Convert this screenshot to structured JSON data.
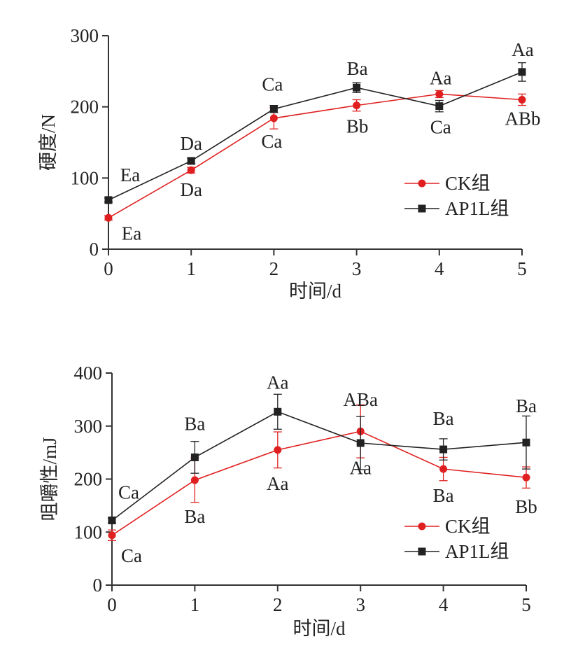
{
  "chart_data": [
    {
      "type": "line",
      "xlabel": "时间/d",
      "ylabel": "硬度/N",
      "x": [
        0,
        1,
        2,
        3,
        4,
        5
      ],
      "xlim": [
        0,
        5
      ],
      "ylim": [
        0,
        300
      ],
      "yticks": [
        0,
        100,
        200,
        300
      ],
      "grid": false,
      "legend_position": "lower-right",
      "series": [
        {
          "name": "CK组",
          "color": "#e02020",
          "marker": "circle",
          "values": [
            44,
            111,
            184,
            202,
            218,
            210
          ],
          "errors": [
            3,
            4,
            15,
            8,
            5,
            8
          ],
          "labels": [
            "Ea",
            "Da",
            "Ca",
            "Bb",
            "Aa",
            "ABb"
          ]
        },
        {
          "name": "AP1L组",
          "color": "#222222",
          "marker": "square",
          "values": [
            69,
            124,
            197,
            227,
            201,
            249
          ],
          "errors": [
            3,
            4,
            5,
            7,
            8,
            13
          ],
          "labels": [
            "Ea",
            "Da",
            "Ca",
            "Ba",
            "Ca",
            "Aa"
          ]
        }
      ]
    },
    {
      "type": "line",
      "xlabel": "时间/d",
      "ylabel": "咀嚼性/mJ",
      "x": [
        0,
        1,
        2,
        3,
        4,
        5
      ],
      "xlim": [
        0,
        5
      ],
      "ylim": [
        0,
        400
      ],
      "yticks": [
        0,
        100,
        200,
        300,
        400
      ],
      "grid": false,
      "legend_position": "lower-right",
      "series": [
        {
          "name": "CK组",
          "color": "#e02020",
          "marker": "circle",
          "values": [
            94,
            198,
            255,
            290,
            219,
            203
          ],
          "errors": [
            10,
            42,
            34,
            50,
            22,
            20
          ],
          "labels": [
            "Ca",
            "Ba",
            "Aa",
            "Aa",
            "Ba",
            "Bb"
          ]
        },
        {
          "name": "AP1L组",
          "color": "#222222",
          "marker": "square",
          "values": [
            122,
            241,
            327,
            268,
            256,
            269
          ],
          "errors": [
            5,
            30,
            33,
            50,
            20,
            50
          ],
          "labels": [
            "Ca",
            "Ba",
            "Aa",
            "ABa",
            "Ba",
            "Ba"
          ]
        }
      ]
    }
  ]
}
